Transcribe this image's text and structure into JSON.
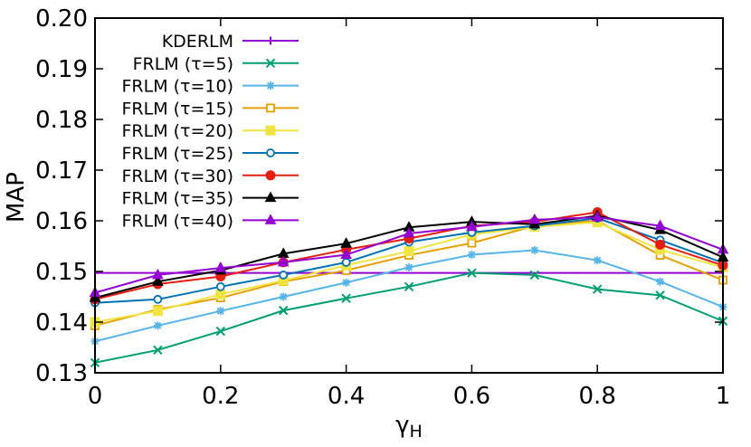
{
  "chart_data": {
    "type": "line",
    "title": "",
    "xlabel": "γ",
    "xlabel_sub": "H",
    "ylabel": "MAP",
    "xlim": [
      0,
      1
    ],
    "ylim": [
      0.13,
      0.2
    ],
    "xticks": [
      0,
      0.2,
      0.4,
      0.6,
      0.8,
      1
    ],
    "xtick_labels": [
      "0",
      "0.2",
      "0.4",
      "0.6",
      "0.8",
      "1"
    ],
    "yticks": [
      0.13,
      0.14,
      0.15,
      0.16,
      0.17,
      0.18,
      0.19,
      0.2
    ],
    "ytick_labels": [
      "0.13",
      "0.14",
      "0.15",
      "0.16",
      "0.17",
      "0.18",
      "0.19",
      "0.20"
    ],
    "grid": false,
    "legend_position": "top-left",
    "x": [
      0,
      0.1,
      0.2,
      0.3,
      0.4,
      0.5,
      0.6,
      0.7,
      0.8,
      0.9,
      1.0
    ],
    "series": [
      {
        "name": "KDERLM",
        "color": "#9400d3",
        "marker": "plus",
        "values": [
          0.1497,
          0.1497,
          0.1497,
          0.1497,
          0.1497,
          0.1497,
          0.1497,
          0.1497,
          0.1497,
          0.1497,
          0.1497
        ]
      },
      {
        "name": "FRLM (τ=5)",
        "color": "#009e73",
        "marker": "cross",
        "values": [
          0.132,
          0.1345,
          0.1382,
          0.1423,
          0.1447,
          0.147,
          0.1497,
          0.1493,
          0.1465,
          0.1453,
          0.1402
        ]
      },
      {
        "name": "FRLM (τ=10)",
        "color": "#56b4e9",
        "marker": "star",
        "values": [
          0.1362,
          0.1393,
          0.1422,
          0.145,
          0.1478,
          0.1508,
          0.1533,
          0.1542,
          0.1522,
          0.148,
          0.143
        ]
      },
      {
        "name": "FRLM (τ=15)",
        "color": "#e69f00",
        "marker": "square-open",
        "values": [
          0.1393,
          0.1425,
          0.1448,
          0.148,
          0.1502,
          0.1532,
          0.1556,
          0.159,
          0.16,
          0.1532,
          0.1483
        ]
      },
      {
        "name": "FRLM (τ=20)",
        "color": "#f0e442",
        "marker": "square-filled",
        "values": [
          0.14,
          0.1422,
          0.1455,
          0.1482,
          0.1512,
          0.154,
          0.1573,
          0.1588,
          0.1597,
          0.1543,
          0.1508
        ]
      },
      {
        "name": "FRLM (τ=25)",
        "color": "#0072b2",
        "marker": "circle-open",
        "values": [
          0.1438,
          0.1445,
          0.147,
          0.1493,
          0.1518,
          0.1558,
          0.1577,
          0.159,
          0.1605,
          0.1562,
          0.1517
        ]
      },
      {
        "name": "FRLM (τ=30)",
        "color": "#e51e10",
        "marker": "circle-filled",
        "values": [
          0.1445,
          0.1475,
          0.149,
          0.1518,
          0.1543,
          0.1565,
          0.159,
          0.1598,
          0.1617,
          0.1553,
          0.1512
        ]
      },
      {
        "name": "FRLM (τ=35)",
        "color": "#000000",
        "marker": "triangle",
        "values": [
          0.1448,
          0.148,
          0.1502,
          0.1535,
          0.1555,
          0.1587,
          0.1598,
          0.1593,
          0.161,
          0.1582,
          0.1528
        ]
      },
      {
        "name": "FRLM (τ=40)",
        "color": "#9400d3",
        "marker": "triangle",
        "values": [
          0.1458,
          0.1493,
          0.1507,
          0.1518,
          0.1533,
          0.1575,
          0.1588,
          0.1602,
          0.1607,
          0.159,
          0.1543
        ]
      }
    ]
  }
}
